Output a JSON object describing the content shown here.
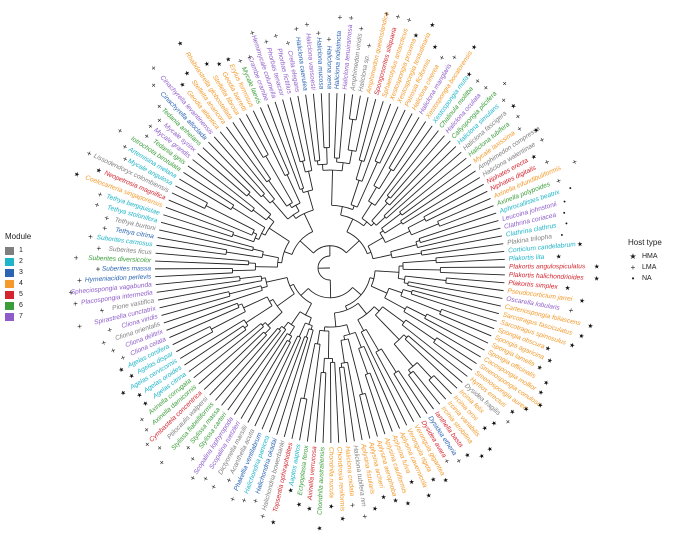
{
  "modules": {
    "title": "Module",
    "items": [
      {
        "label": "1",
        "color": "#7f7f7f"
      },
      {
        "label": "2",
        "color": "#1fb5c9"
      },
      {
        "label": "3",
        "color": "#2a64b3"
      },
      {
        "label": "4",
        "color": "#f39a2b"
      },
      {
        "label": "5",
        "color": "#d4242d"
      },
      {
        "label": "6",
        "color": "#3a9d3a"
      },
      {
        "label": "7",
        "color": "#8e5cc9"
      }
    ]
  },
  "host_type": {
    "title": "Host type",
    "items": [
      {
        "symbol": "★",
        "label": "HMA"
      },
      {
        "symbol": "+",
        "label": "LMA"
      },
      {
        "symbol": "•",
        "label": "NA"
      }
    ]
  },
  "tips": [
    {
      "name": "Plakina trilopha",
      "module": 1,
      "host": "NA"
    },
    {
      "name": "Clathrina clathrus",
      "module": 2,
      "host": "NA"
    },
    {
      "name": "Clathrina coriacea",
      "module": 7,
      "host": "NA"
    },
    {
      "name": "Leucoina johnstonii",
      "module": 7,
      "host": "NA"
    },
    {
      "name": "Aphrocallistes beatrix",
      "module": 2,
      "host": "NA"
    },
    {
      "name": "Axinella polypoides",
      "module": 6,
      "host": "LMA"
    },
    {
      "name": "Axinella infundibuliformis",
      "module": 4,
      "host": "LMA"
    },
    {
      "name": "Niphates digitalis",
      "module": 5,
      "host": "LMA"
    },
    {
      "name": "Niphates erecta",
      "module": 5,
      "host": "HMA"
    },
    {
      "name": "Haliclona walentinae",
      "module": 1,
      "host": "LMA"
    },
    {
      "name": "Amphimedon compressa",
      "module": 1,
      "host": "HMA"
    },
    {
      "name": "Mycale laxissima",
      "module": 4,
      "host": "LMA"
    },
    {
      "name": "Haliclona tubifera",
      "module": 6,
      "host": "LMA"
    },
    {
      "name": "Haliclona fascigera",
      "module": 1,
      "host": "HMA"
    },
    {
      "name": "Haliclona simulans",
      "module": 2,
      "host": "LMA"
    },
    {
      "name": "Callyspongia plicifera",
      "module": 6,
      "host": "LMA"
    },
    {
      "name": "Haliclona oculata",
      "module": 7,
      "host": "LMA"
    },
    {
      "name": "Chalinula molitba",
      "module": 6,
      "host": "LMA"
    },
    {
      "name": "Xestospongia muta",
      "module": 2,
      "host": "HMA"
    },
    {
      "name": "Xestospongia bocatorensis",
      "module": 4,
      "host": "HMA"
    },
    {
      "name": "Haliclona manglaris",
      "module": 7,
      "host": "LMA"
    },
    {
      "name": "Haliclona cinerea",
      "module": 4,
      "host": "LMA"
    },
    {
      "name": "Petrosia ficiformis",
      "module": 4,
      "host": "HMA"
    },
    {
      "name": "Xestospongia testudinaria",
      "module": 4,
      "host": "HMA"
    },
    {
      "name": "Xestospongia proxima",
      "module": 4,
      "host": "HMA"
    },
    {
      "name": "Sphaerotylus antarcticus",
      "module": 4,
      "host": "LMA"
    },
    {
      "name": "Spongosorites siliquaria",
      "module": 5,
      "host": "LMA"
    },
    {
      "name": "Amphimedon queenslandica",
      "module": 4,
      "host": "LMA"
    },
    {
      "name": "Haliclona sp.",
      "module": 1,
      "host": "LMA"
    },
    {
      "name": "Amphimedon viridis",
      "module": 1,
      "host": "LMA"
    },
    {
      "name": "Haliclona tenuiramosa",
      "module": 7,
      "host": "LMA"
    },
    {
      "name": "Haliclona indistincta",
      "module": 3,
      "host": "LMA"
    },
    {
      "name": "Haliclona xena",
      "module": 3,
      "host": "LMA"
    },
    {
      "name": "Haliclona mucosa",
      "module": 3,
      "host": "LMA"
    },
    {
      "name": "Haliclona vansoesti",
      "module": 7,
      "host": "LMA"
    },
    {
      "name": "Haliclona caerulea",
      "module": 3,
      "host": "LMA"
    },
    {
      "name": "Crella elegans",
      "module": 7,
      "host": "LMA"
    },
    {
      "name": "Phorbas fictitius",
      "module": 7,
      "host": "LMA"
    },
    {
      "name": "Phorbas tenacior",
      "module": 7,
      "host": "LMA"
    },
    {
      "name": "Hemimycale columella",
      "module": 7,
      "host": "LMA"
    },
    {
      "name": "Crambe crambe",
      "module": 7,
      "host": "LMA"
    },
    {
      "name": "Mycale laevis",
      "module": 6,
      "host": "LMA"
    },
    {
      "name": "Erylus formosus",
      "module": 4,
      "host": "HMA"
    },
    {
      "name": "Geodia barretti",
      "module": 4,
      "host": "HMA"
    },
    {
      "name": "Stelletta fibrosa",
      "module": 4,
      "host": "HMA"
    },
    {
      "name": "Rhabdastrella globostellata",
      "module": 4,
      "host": "HMA"
    },
    {
      "name": "Stelletta anancora",
      "module": 4,
      "host": "HMA"
    },
    {
      "name": "Geodia atlantica",
      "module": 4,
      "host": "HMA"
    },
    {
      "name": "Cinachyrella levantinensis",
      "module": 7,
      "host": "LMA"
    },
    {
      "name": "Cinachyrella alloclada",
      "module": 3,
      "host": "LMA"
    },
    {
      "name": "Tedania anhelans",
      "module": 6,
      "host": "LMA"
    },
    {
      "name": "Mycale syrinx",
      "module": 7,
      "host": "LMA"
    },
    {
      "name": "Mycale grandis",
      "module": 7,
      "host": "LMA"
    },
    {
      "name": "Tedania ignis",
      "module": 6,
      "host": "LMA"
    },
    {
      "name": "Iotrochota birotulata",
      "module": 6,
      "host": "LMA"
    },
    {
      "name": "Artemisina melana",
      "module": 2,
      "host": "LMA"
    },
    {
      "name": "Mycale angulosa",
      "module": 2,
      "host": "LMA"
    },
    {
      "name": "Lissodendoryx colombiensis",
      "module": 1,
      "host": "LMA"
    },
    {
      "name": "Neopetrosia magnifica",
      "module": 5,
      "host": "HMA"
    },
    {
      "name": "Coelocarteria singaporensis",
      "module": 4,
      "host": "HMA"
    },
    {
      "name": "Tethya bergquistae",
      "module": 2,
      "host": "LMA"
    },
    {
      "name": "Tethya stolonifera",
      "module": 2,
      "host": "LMA"
    },
    {
      "name": "Tethya burtoni",
      "module": 1,
      "host": "LMA"
    },
    {
      "name": "Tethya citrina",
      "module": 3,
      "host": "LMA"
    },
    {
      "name": "Suberites carnosus",
      "module": 2,
      "host": "LMA"
    },
    {
      "name": "Suberites ficus",
      "module": 1,
      "host": "LMA"
    },
    {
      "name": "Suberites diversicolor",
      "module": 6,
      "host": "LMA"
    },
    {
      "name": "Suberites massa",
      "module": 3,
      "host": "LMA"
    },
    {
      "name": "Hymeniacidon perlevis",
      "module": 3,
      "host": "LMA"
    },
    {
      "name": "Spheciospongia vagabunda",
      "module": 7,
      "host": "LMA"
    },
    {
      "name": "Placospongia intermedia",
      "module": 7,
      "host": "LMA"
    },
    {
      "name": "Pione vastifica",
      "module": 1,
      "host": "LMA"
    },
    {
      "name": "Spirastrella cunctatrix",
      "module": 7,
      "host": "LMA"
    },
    {
      "name": "Cliona viridis",
      "module": 7,
      "host": "LMA"
    },
    {
      "name": "Cliona orientalis",
      "module": 1,
      "host": "LMA"
    },
    {
      "name": "Cliona delitrix",
      "module": 7,
      "host": "LMA"
    },
    {
      "name": "Cliona celata",
      "module": 7,
      "host": "LMA"
    },
    {
      "name": "Agelas conifera",
      "module": 2,
      "host": "HMA"
    },
    {
      "name": "Agelas dispar",
      "module": 2,
      "host": "HMA"
    },
    {
      "name": "Agelas cervicornis",
      "module": 2,
      "host": "HMA"
    },
    {
      "name": "Agelas oroides",
      "module": 2,
      "host": "HMA"
    },
    {
      "name": "Agelas citrina",
      "module": 2,
      "host": "HMA"
    },
    {
      "name": "Axinella corrugata",
      "module": 6,
      "host": "LMA"
    },
    {
      "name": "Axinella damicornis",
      "module": 6,
      "host": "LMA"
    },
    {
      "name": "Cymbastela concentrica",
      "module": 5,
      "host": "LMA"
    },
    {
      "name": "Ptilocaulis walpersi",
      "module": 1,
      "host": "LMA"
    },
    {
      "name": "Stylissa flabelliformis",
      "module": 6,
      "host": "LMA"
    },
    {
      "name": "Stylissa massa",
      "module": 6,
      "host": "LMA"
    },
    {
      "name": "Stylissa carteri",
      "module": 6,
      "host": "LMA"
    },
    {
      "name": "Scopalina lophyropoda",
      "module": 7,
      "host": "LMA"
    },
    {
      "name": "Scopalina ruetzleri",
      "module": 7,
      "host": "LMA"
    },
    {
      "name": "Dictyonella marsilii",
      "module": 1,
      "host": "LMA"
    },
    {
      "name": "Acanthella acuta",
      "module": 1,
      "host": "LMA"
    },
    {
      "name": "Phakellia ventilabrum",
      "module": 3,
      "host": "LMA"
    },
    {
      "name": "Halichondria panicea",
      "module": 2,
      "host": "LMA"
    },
    {
      "name": "Halichondria okadai",
      "module": 3,
      "host": "LMA"
    },
    {
      "name": "Halichondria bowerbanki",
      "module": 1,
      "host": "LMA"
    },
    {
      "name": "Topsentia ophiraphidites",
      "module": 5,
      "host": "HMA"
    },
    {
      "name": "Aaptos aaptos",
      "module": 2,
      "host": "HMA"
    },
    {
      "name": "Ectyoplasia ferox",
      "module": 6,
      "host": "HMA"
    },
    {
      "name": "Axinella verrucosa",
      "module": 5,
      "host": "HMA"
    },
    {
      "name": "Chondrilla australiensis",
      "module": 6,
      "host": "HMA"
    },
    {
      "name": "Chondrilla nucula",
      "module": 4,
      "host": "HMA"
    },
    {
      "name": "Chondrosia reniformis",
      "module": 4,
      "host": "HMA"
    },
    {
      "name": "Haliclona cnidata",
      "module": 4,
      "host": "LMA"
    },
    {
      "name": "Haliclona tubifera nm",
      "module": 1,
      "host": "LMA"
    },
    {
      "name": "Aplysina fistularis",
      "module": 4,
      "host": "HMA"
    },
    {
      "name": "Aplysina archeri",
      "module": 4,
      "host": "HMA"
    },
    {
      "name": "Aplysina aerophoba",
      "module": 4,
      "host": "HMA"
    },
    {
      "name": "Aplysina cauliformis",
      "module": 4,
      "host": "HMA"
    },
    {
      "name": "Aplysina fulva",
      "module": 4,
      "host": "HMA"
    },
    {
      "name": "Aplysina cavernicola",
      "module": 4,
      "host": "HMA"
    },
    {
      "name": "Verongula rigida",
      "module": 4,
      "host": "HMA"
    },
    {
      "name": "Verongula gigantea",
      "module": 4,
      "host": "HMA"
    },
    {
      "name": "Dysidea avara",
      "module": 5,
      "host": "LMA"
    },
    {
      "name": "Dysidea etheria",
      "module": 3,
      "host": "LMA"
    },
    {
      "name": "Ianthella basta",
      "module": 5,
      "host": "HMA"
    },
    {
      "name": "Ircinia strobilina",
      "module": 4,
      "host": "HMA"
    },
    {
      "name": "Ircinia variabilis",
      "module": 4,
      "host": "HMA"
    },
    {
      "name": "Ircinia oros",
      "module": 4,
      "host": "HMA"
    },
    {
      "name": "Ircinia felix",
      "module": 4,
      "host": "HMA"
    },
    {
      "name": "Dysidea fragilis",
      "module": 1,
      "host": "LMA"
    },
    {
      "name": "Hyrtios erectus",
      "module": 4,
      "host": "HMA"
    },
    {
      "name": "Smenospongia aurea",
      "module": 4,
      "host": "HMA"
    },
    {
      "name": "Smenospongia conulosa",
      "module": 4,
      "host": "HMA"
    },
    {
      "name": "Cacospongia mollior",
      "module": 4,
      "host": "HMA"
    },
    {
      "name": "Spongia officinalis",
      "module": 4,
      "host": "HMA"
    },
    {
      "name": "Spongia lamella",
      "module": 4,
      "host": "HMA"
    },
    {
      "name": "Spongia agaricina",
      "module": 4,
      "host": "HMA"
    },
    {
      "name": "Spongia obscura",
      "module": 4,
      "host": "HMA"
    },
    {
      "name": "Sarcotragus spinosulus",
      "module": 4,
      "host": "HMA"
    },
    {
      "name": "Sarcotragus fasciculatus",
      "module": 4,
      "host": "HMA"
    },
    {
      "name": "Carteriospongia foliascens",
      "module": 4,
      "host": "HMA"
    },
    {
      "name": "Oscarella lobularis",
      "module": 7,
      "host": "LMA"
    },
    {
      "name": "Pseudocorticium jarrei",
      "module": 4,
      "host": "HMA"
    },
    {
      "name": "Plakortis simplex",
      "module": 5,
      "host": "HMA"
    },
    {
      "name": "Plakortis halichondrioides",
      "module": 5,
      "host": "HMA"
    },
    {
      "name": "Plakortis angulospiculatus",
      "module": 5,
      "host": "HMA"
    },
    {
      "name": "Plakortis lita",
      "module": 2,
      "host": "HMA"
    },
    {
      "name": "Corticium candelabrum",
      "module": 2,
      "host": "HMA"
    }
  ]
}
